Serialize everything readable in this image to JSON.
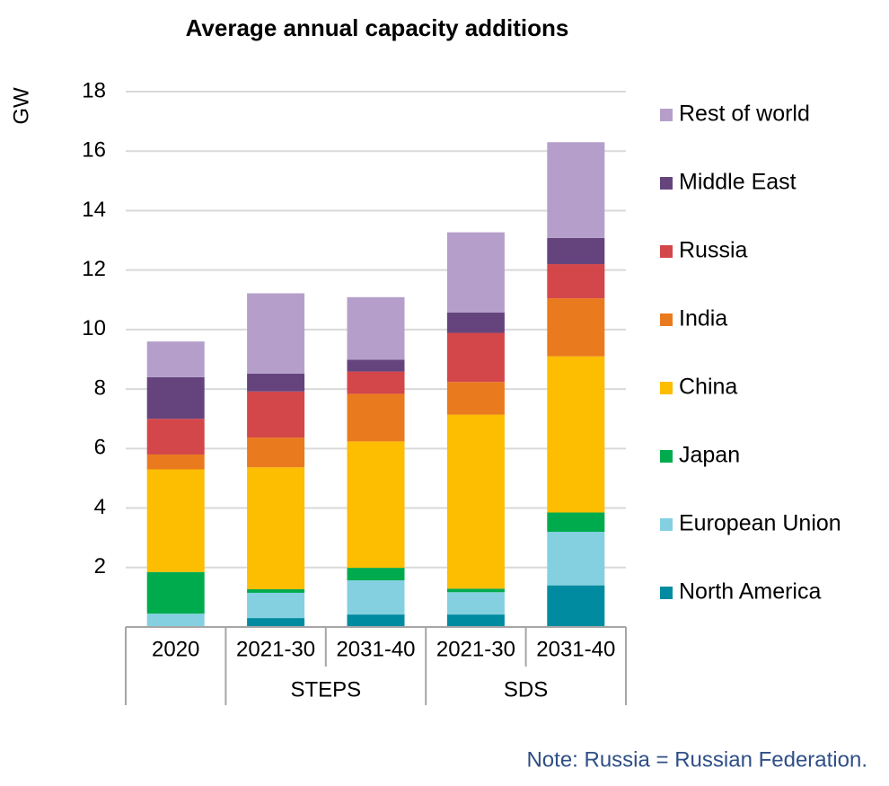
{
  "chart_data": {
    "type": "stacked_bar",
    "title": "Average annual capacity additions",
    "y_label": "GW",
    "categories": [
      "2020",
      "2021-30",
      "2031-40",
      "2021-30",
      "2031-40"
    ],
    "category_groups": [
      null,
      "STEPS",
      "STEPS",
      "SDS",
      "SDS"
    ],
    "series": [
      {
        "name": "North America",
        "color": "#008ba0",
        "values": [
          0,
          0.3,
          0.42,
          0.42,
          1.4
        ]
      },
      {
        "name": "European Union",
        "color": "#84d0e1",
        "values": [
          0.45,
          0.85,
          1.15,
          0.75,
          1.8
        ]
      },
      {
        "name": "Japan",
        "color": "#00ab4e",
        "values": [
          1.4,
          0.12,
          0.42,
          0.12,
          0.65
        ]
      },
      {
        "name": "China",
        "color": "#fdbd00",
        "values": [
          3.45,
          4.1,
          4.25,
          5.85,
          5.25
        ]
      },
      {
        "name": "India",
        "color": "#ea7a1e",
        "values": [
          0.5,
          1.0,
          1.6,
          1.1,
          1.95
        ]
      },
      {
        "name": "Russia",
        "color": "#d3464a",
        "values": [
          1.2,
          1.55,
          0.75,
          1.65,
          1.15
        ]
      },
      {
        "name": "Middle East",
        "color": "#65447e",
        "values": [
          1.4,
          0.6,
          0.4,
          0.68,
          0.88
        ]
      },
      {
        "name": "Rest of world",
        "color": "#b59fca",
        "values": [
          1.2,
          2.7,
          2.1,
          2.7,
          3.22
        ]
      }
    ],
    "ylim": [
      0,
      18
    ],
    "yticks": [
      2,
      4,
      6,
      8,
      10,
      12,
      14,
      16,
      18
    ],
    "grid": true,
    "legend": "right",
    "note": "Note: Russia = Russian Federation."
  }
}
